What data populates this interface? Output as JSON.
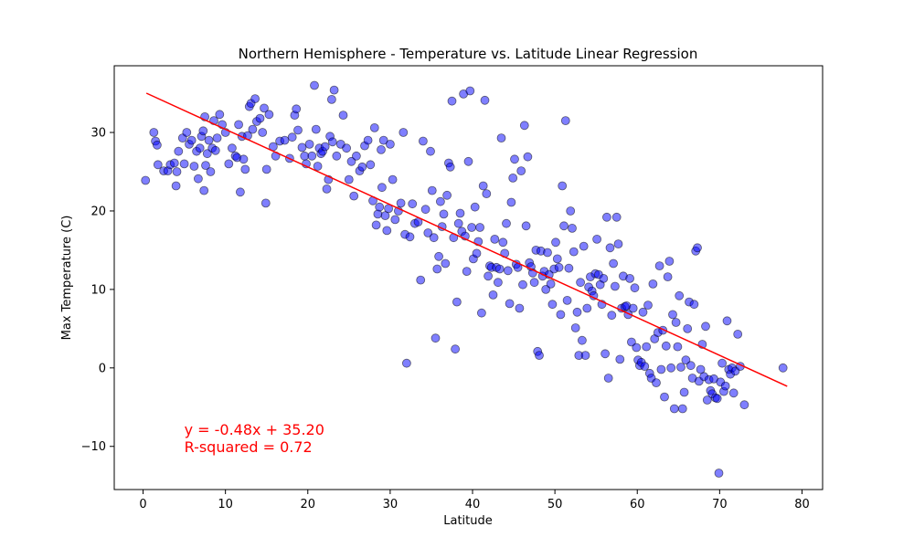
{
  "chart_data": {
    "type": "scatter",
    "title": "Northern Hemisphere - Temperature vs. Latitude Linear Regression",
    "xlabel": "Latitude",
    "ylabel": "Max Temperature (C)",
    "xlim": [
      -3.5,
      82.5
    ],
    "ylim": [
      -15.5,
      38.5
    ],
    "xticks": [
      0,
      10,
      20,
      30,
      40,
      50,
      60,
      70,
      80
    ],
    "yticks": [
      -10,
      0,
      10,
      20,
      30
    ],
    "grid": false,
    "point_color": "#0000ff",
    "point_alpha": 0.5,
    "line_color": "#ff0000",
    "regression": {
      "slope": -0.48,
      "intercept": 35.2,
      "x_start": 0.4,
      "x_end": 78.2
    },
    "annotation": {
      "line1": "y = -0.48x + 35.20",
      "line2": "R-squared = 0.72",
      "color": "#ff0000",
      "x": 5,
      "y": -8.5
    },
    "points": [
      [
        0.3,
        23.9
      ],
      [
        1.3,
        30.0
      ],
      [
        1.5,
        28.9
      ],
      [
        1.7,
        28.4
      ],
      [
        1.8,
        25.9
      ],
      [
        2.5,
        25.1
      ],
      [
        3.0,
        25.1
      ],
      [
        3.3,
        25.9
      ],
      [
        3.8,
        26.1
      ],
      [
        4.0,
        23.2
      ],
      [
        4.1,
        25.0
      ],
      [
        4.3,
        27.6
      ],
      [
        4.8,
        29.3
      ],
      [
        5.0,
        26.0
      ],
      [
        5.3,
        30.0
      ],
      [
        5.6,
        28.5
      ],
      [
        5.9,
        29.0
      ],
      [
        6.2,
        25.7
      ],
      [
        6.5,
        27.6
      ],
      [
        6.7,
        24.1
      ],
      [
        6.9,
        28.0
      ],
      [
        7.1,
        29.5
      ],
      [
        7.3,
        30.2
      ],
      [
        7.4,
        22.6
      ],
      [
        7.5,
        32.0
      ],
      [
        7.6,
        25.8
      ],
      [
        7.8,
        27.3
      ],
      [
        8.0,
        29.0
      ],
      [
        8.2,
        25.0
      ],
      [
        8.4,
        28.0
      ],
      [
        8.6,
        31.5
      ],
      [
        8.8,
        27.7
      ],
      [
        9.0,
        29.3
      ],
      [
        9.3,
        32.3
      ],
      [
        9.6,
        31.0
      ],
      [
        10.0,
        30.0
      ],
      [
        10.4,
        26.0
      ],
      [
        10.8,
        28.0
      ],
      [
        11.2,
        27.0
      ],
      [
        11.4,
        26.8
      ],
      [
        11.6,
        31.0
      ],
      [
        11.8,
        22.4
      ],
      [
        12.0,
        29.5
      ],
      [
        12.2,
        26.6
      ],
      [
        12.4,
        25.3
      ],
      [
        12.7,
        29.6
      ],
      [
        12.9,
        33.3
      ],
      [
        13.1,
        33.7
      ],
      [
        13.3,
        30.4
      ],
      [
        13.6,
        34.3
      ],
      [
        13.8,
        31.4
      ],
      [
        14.2,
        31.8
      ],
      [
        14.5,
        30.0
      ],
      [
        14.7,
        33.1
      ],
      [
        14.9,
        21.0
      ],
      [
        15.0,
        25.3
      ],
      [
        15.3,
        32.3
      ],
      [
        15.8,
        28.2
      ],
      [
        16.1,
        27.0
      ],
      [
        16.6,
        28.9
      ],
      [
        17.2,
        29.0
      ],
      [
        17.8,
        26.7
      ],
      [
        18.1,
        29.4
      ],
      [
        18.4,
        32.2
      ],
      [
        18.6,
        33.0
      ],
      [
        18.8,
        30.3
      ],
      [
        19.3,
        28.1
      ],
      [
        19.6,
        27.0
      ],
      [
        19.8,
        26.0
      ],
      [
        20.2,
        28.5
      ],
      [
        20.5,
        27.0
      ],
      [
        20.8,
        36.0
      ],
      [
        21.0,
        30.4
      ],
      [
        21.2,
        25.7
      ],
      [
        21.4,
        28.0
      ],
      [
        21.6,
        27.3
      ],
      [
        21.8,
        27.6
      ],
      [
        22.1,
        28.2
      ],
      [
        22.3,
        22.8
      ],
      [
        22.5,
        24.0
      ],
      [
        22.7,
        29.5
      ],
      [
        22.9,
        34.2
      ],
      [
        23.0,
        28.8
      ],
      [
        23.2,
        35.4
      ],
      [
        23.5,
        27.0
      ],
      [
        24.0,
        28.5
      ],
      [
        24.3,
        32.2
      ],
      [
        24.7,
        28.0
      ],
      [
        25.0,
        24.0
      ],
      [
        25.3,
        26.3
      ],
      [
        25.6,
        21.9
      ],
      [
        25.9,
        27.0
      ],
      [
        26.3,
        25.1
      ],
      [
        26.6,
        25.6
      ],
      [
        26.9,
        28.3
      ],
      [
        27.3,
        29.0
      ],
      [
        27.6,
        25.9
      ],
      [
        27.9,
        21.3
      ],
      [
        28.1,
        30.6
      ],
      [
        28.3,
        18.2
      ],
      [
        28.5,
        19.6
      ],
      [
        28.7,
        20.5
      ],
      [
        28.9,
        27.8
      ],
      [
        29.0,
        23.0
      ],
      [
        29.2,
        29.0
      ],
      [
        29.4,
        19.4
      ],
      [
        29.6,
        17.5
      ],
      [
        29.8,
        20.3
      ],
      [
        30.0,
        28.5
      ],
      [
        30.3,
        24.0
      ],
      [
        30.6,
        18.9
      ],
      [
        31.0,
        20.0
      ],
      [
        31.3,
        21.0
      ],
      [
        31.6,
        30.0
      ],
      [
        31.8,
        17.0
      ],
      [
        32.0,
        0.6
      ],
      [
        32.4,
        16.7
      ],
      [
        32.7,
        20.9
      ],
      [
        33.0,
        18.4
      ],
      [
        33.4,
        18.6
      ],
      [
        33.7,
        11.2
      ],
      [
        34.0,
        28.9
      ],
      [
        34.3,
        20.2
      ],
      [
        34.6,
        17.2
      ],
      [
        34.9,
        27.6
      ],
      [
        35.1,
        22.6
      ],
      [
        35.3,
        16.6
      ],
      [
        35.5,
        3.8
      ],
      [
        35.7,
        12.6
      ],
      [
        35.9,
        14.2
      ],
      [
        36.1,
        21.2
      ],
      [
        36.3,
        18.0
      ],
      [
        36.5,
        19.6
      ],
      [
        36.7,
        13.3
      ],
      [
        36.9,
        22.0
      ],
      [
        37.1,
        26.1
      ],
      [
        37.3,
        25.6
      ],
      [
        37.5,
        34.0
      ],
      [
        37.7,
        16.6
      ],
      [
        37.9,
        2.4
      ],
      [
        38.1,
        8.4
      ],
      [
        38.3,
        18.4
      ],
      [
        38.5,
        19.7
      ],
      [
        38.7,
        17.4
      ],
      [
        38.9,
        34.9
      ],
      [
        39.1,
        16.8
      ],
      [
        39.3,
        12.3
      ],
      [
        39.5,
        26.3
      ],
      [
        39.7,
        35.3
      ],
      [
        39.9,
        17.9
      ],
      [
        40.1,
        13.9
      ],
      [
        40.3,
        20.5
      ],
      [
        40.5,
        14.6
      ],
      [
        40.7,
        16.1
      ],
      [
        40.9,
        17.9
      ],
      [
        41.1,
        7.0
      ],
      [
        41.3,
        23.2
      ],
      [
        41.5,
        34.1
      ],
      [
        41.7,
        22.2
      ],
      [
        41.9,
        11.7
      ],
      [
        42.1,
        13.0
      ],
      [
        42.3,
        12.8
      ],
      [
        42.5,
        9.3
      ],
      [
        42.7,
        16.4
      ],
      [
        42.9,
        12.8
      ],
      [
        43.1,
        10.9
      ],
      [
        43.3,
        12.6
      ],
      [
        43.5,
        29.3
      ],
      [
        43.7,
        16.0
      ],
      [
        43.9,
        14.6
      ],
      [
        44.1,
        18.4
      ],
      [
        44.3,
        12.4
      ],
      [
        44.5,
        8.2
      ],
      [
        44.7,
        21.1
      ],
      [
        44.9,
        24.2
      ],
      [
        45.1,
        26.6
      ],
      [
        45.3,
        13.2
      ],
      [
        45.5,
        12.8
      ],
      [
        45.7,
        7.6
      ],
      [
        45.9,
        25.1
      ],
      [
        46.1,
        10.6
      ],
      [
        46.3,
        30.9
      ],
      [
        46.5,
        18.1
      ],
      [
        46.7,
        26.9
      ],
      [
        46.9,
        13.4
      ],
      [
        47.1,
        12.9
      ],
      [
        47.3,
        12.1
      ],
      [
        47.5,
        10.9
      ],
      [
        47.7,
        15.0
      ],
      [
        47.9,
        2.1
      ],
      [
        48.1,
        1.6
      ],
      [
        48.3,
        14.9
      ],
      [
        48.5,
        11.7
      ],
      [
        48.7,
        12.3
      ],
      [
        48.9,
        10.0
      ],
      [
        49.1,
        14.7
      ],
      [
        49.3,
        11.9
      ],
      [
        49.5,
        10.7
      ],
      [
        49.7,
        8.1
      ],
      [
        49.9,
        12.6
      ],
      [
        50.1,
        16.0
      ],
      [
        50.3,
        13.9
      ],
      [
        50.5,
        12.8
      ],
      [
        50.7,
        6.8
      ],
      [
        50.9,
        23.2
      ],
      [
        51.1,
        18.1
      ],
      [
        51.3,
        31.5
      ],
      [
        51.5,
        8.6
      ],
      [
        51.7,
        12.7
      ],
      [
        51.9,
        20.0
      ],
      [
        52.1,
        17.8
      ],
      [
        52.3,
        14.8
      ],
      [
        52.5,
        5.1
      ],
      [
        52.7,
        7.1
      ],
      [
        52.9,
        1.6
      ],
      [
        53.1,
        10.9
      ],
      [
        53.3,
        3.5
      ],
      [
        53.5,
        15.5
      ],
      [
        53.7,
        1.6
      ],
      [
        53.9,
        7.6
      ],
      [
        54.1,
        10.3
      ],
      [
        54.3,
        11.6
      ],
      [
        54.5,
        9.8
      ],
      [
        54.7,
        9.2
      ],
      [
        54.9,
        12.0
      ],
      [
        55.1,
        16.4
      ],
      [
        55.3,
        11.9
      ],
      [
        55.5,
        10.6
      ],
      [
        55.7,
        8.1
      ],
      [
        55.9,
        11.4
      ],
      [
        56.1,
        1.8
      ],
      [
        56.3,
        19.2
      ],
      [
        56.5,
        -1.3
      ],
      [
        56.7,
        15.3
      ],
      [
        56.9,
        6.7
      ],
      [
        57.1,
        13.3
      ],
      [
        57.3,
        10.4
      ],
      [
        57.5,
        19.2
      ],
      [
        57.7,
        15.8
      ],
      [
        57.9,
        1.1
      ],
      [
        58.1,
        7.6
      ],
      [
        58.3,
        11.7
      ],
      [
        58.5,
        7.8
      ],
      [
        58.7,
        7.9
      ],
      [
        58.9,
        6.8
      ],
      [
        59.1,
        11.4
      ],
      [
        59.3,
        3.3
      ],
      [
        59.5,
        7.6
      ],
      [
        59.7,
        10.2
      ],
      [
        59.9,
        2.6
      ],
      [
        60.1,
        1.0
      ],
      [
        60.3,
        0.3
      ],
      [
        60.5,
        0.7
      ],
      [
        60.7,
        7.1
      ],
      [
        60.9,
        0.2
      ],
      [
        61.1,
        2.7
      ],
      [
        61.3,
        8.0
      ],
      [
        61.5,
        -0.7
      ],
      [
        61.7,
        -1.3
      ],
      [
        61.9,
        10.7
      ],
      [
        62.1,
        3.7
      ],
      [
        62.3,
        -1.9
      ],
      [
        62.5,
        4.5
      ],
      [
        62.7,
        13.0
      ],
      [
        62.9,
        -0.2
      ],
      [
        63.1,
        4.8
      ],
      [
        63.3,
        -3.7
      ],
      [
        63.5,
        2.8
      ],
      [
        63.7,
        11.6
      ],
      [
        63.9,
        13.6
      ],
      [
        64.1,
        0.0
      ],
      [
        64.3,
        6.8
      ],
      [
        64.5,
        -5.2
      ],
      [
        64.7,
        5.8
      ],
      [
        64.9,
        2.7
      ],
      [
        65.1,
        9.2
      ],
      [
        65.3,
        0.1
      ],
      [
        65.5,
        -5.2
      ],
      [
        65.7,
        -3.1
      ],
      [
        65.9,
        1.0
      ],
      [
        66.1,
        5.0
      ],
      [
        66.3,
        8.4
      ],
      [
        66.5,
        0.3
      ],
      [
        66.7,
        -1.3
      ],
      [
        66.9,
        8.1
      ],
      [
        67.1,
        14.9
      ],
      [
        67.3,
        15.3
      ],
      [
        67.5,
        -1.7
      ],
      [
        67.7,
        -0.2
      ],
      [
        67.9,
        3.0
      ],
      [
        68.1,
        -1.1
      ],
      [
        68.3,
        5.3
      ],
      [
        68.5,
        -4.1
      ],
      [
        68.7,
        -1.5
      ],
      [
        68.9,
        -2.9
      ],
      [
        69.1,
        -3.3
      ],
      [
        69.3,
        -1.4
      ],
      [
        69.5,
        -3.8
      ],
      [
        69.7,
        -3.9
      ],
      [
        69.9,
        -13.4
      ],
      [
        70.1,
        -1.8
      ],
      [
        70.3,
        0.6
      ],
      [
        70.5,
        -3.0
      ],
      [
        70.7,
        -2.3
      ],
      [
        70.9,
        6.0
      ],
      [
        71.1,
        -0.2
      ],
      [
        71.3,
        -0.8
      ],
      [
        71.5,
        0.0
      ],
      [
        71.7,
        -3.2
      ],
      [
        71.9,
        -0.4
      ],
      [
        72.2,
        4.3
      ],
      [
        72.5,
        0.2
      ],
      [
        73.0,
        -4.7
      ],
      [
        77.7,
        0.0
      ]
    ]
  }
}
